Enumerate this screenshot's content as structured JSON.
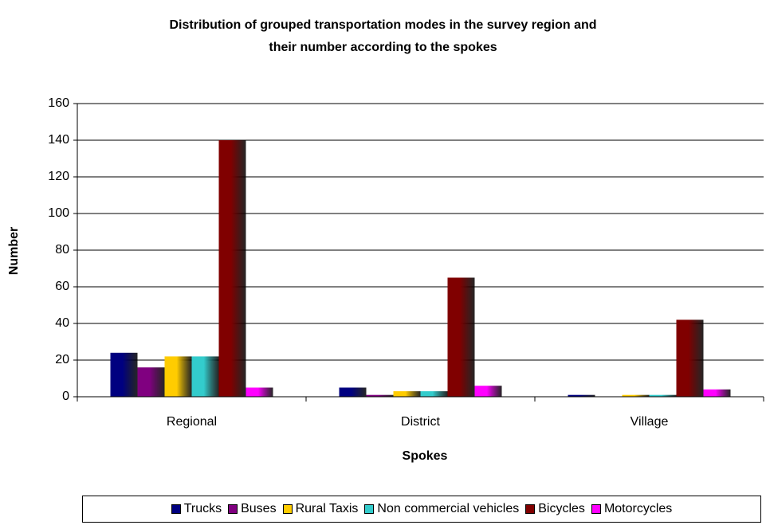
{
  "chart_data": {
    "type": "bar",
    "title": "Distribution of grouped transportation modes in the survey region and\ntheir number according to the spokes",
    "x_label": "Spokes",
    "y_label": "Number",
    "categories": [
      "Regional",
      "District",
      "Village"
    ],
    "series": [
      {
        "name": "Trucks",
        "color": "#000080",
        "values": [
          24,
          5,
          1
        ]
      },
      {
        "name": "Buses",
        "color": "#800080",
        "values": [
          16,
          1,
          0
        ]
      },
      {
        "name": "Rural Taxis",
        "color": "#ffcc00",
        "values": [
          22,
          3,
          1
        ]
      },
      {
        "name": "Non commercial vehicles",
        "color": "#33cccc",
        "values": [
          22,
          3,
          1
        ]
      },
      {
        "name": "Bicycles",
        "color": "#800000",
        "values": [
          140,
          65,
          42
        ]
      },
      {
        "name": "Motorcycles",
        "color": "#ff00ff",
        "values": [
          5,
          6,
          4
        ]
      }
    ],
    "ylim": [
      0,
      160
    ],
    "yticks": [
      0,
      20,
      40,
      60,
      80,
      100,
      120,
      140,
      160
    ],
    "grid": true,
    "legend": "bottom"
  }
}
